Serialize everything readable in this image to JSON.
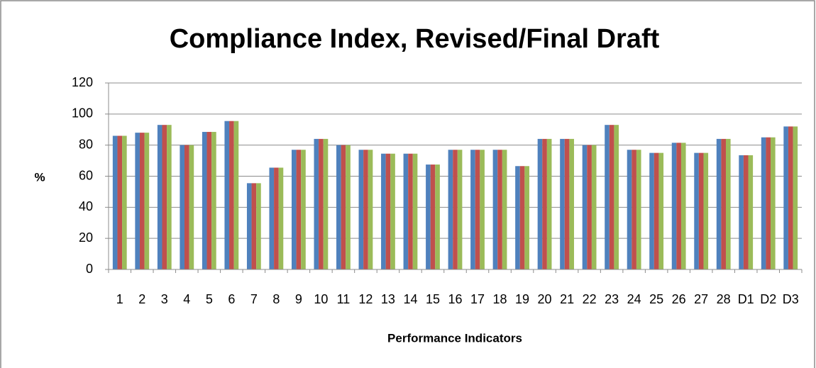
{
  "chart_data": {
    "type": "bar",
    "title": "Compliance Index, Revised/Final Draft",
    "y_label": "%",
    "x_label": "Performance Indicators",
    "categories": [
      "1",
      "2",
      "3",
      "4",
      "5",
      "6",
      "7",
      "8",
      "9",
      "10",
      "11",
      "12",
      "13",
      "14",
      "15",
      "16",
      "17",
      "18",
      "19",
      "20",
      "21",
      "22",
      "23",
      "24",
      "25",
      "26",
      "27",
      "28",
      "D1",
      "D2",
      "D3"
    ],
    "series": [
      {
        "color": "#4f81bd",
        "values": [
          86,
          88,
          93,
          80,
          88.5,
          95.5,
          55.5,
          65.5,
          77,
          84,
          80,
          77,
          74.5,
          74.5,
          67.5,
          77,
          77,
          77,
          66.5,
          84,
          84,
          80,
          93,
          77,
          75,
          81.5,
          75,
          84,
          73.5,
          85,
          92
        ]
      },
      {
        "color": "#c0504d",
        "values": [
          86,
          88,
          93,
          80,
          88.5,
          95.5,
          55.5,
          65.5,
          77,
          84,
          80,
          77,
          74.5,
          74.5,
          67.5,
          77,
          77,
          77,
          66.5,
          84,
          84,
          80,
          93,
          77,
          75,
          81.5,
          75,
          84,
          73.5,
          85,
          92
        ]
      },
      {
        "color": "#9bbb59",
        "values": [
          86,
          88,
          93,
          80,
          88.5,
          95.5,
          55.5,
          65.5,
          77,
          84,
          80,
          77,
          74.5,
          74.5,
          67.5,
          77,
          77,
          77,
          66.5,
          84,
          84,
          80,
          93,
          77,
          75,
          81.5,
          75,
          84,
          73.5,
          85,
          92
        ]
      }
    ],
    "ylim": [
      0,
      120
    ],
    "yticks": [
      0,
      20,
      40,
      60,
      80,
      100,
      120
    ],
    "grid": true
  }
}
